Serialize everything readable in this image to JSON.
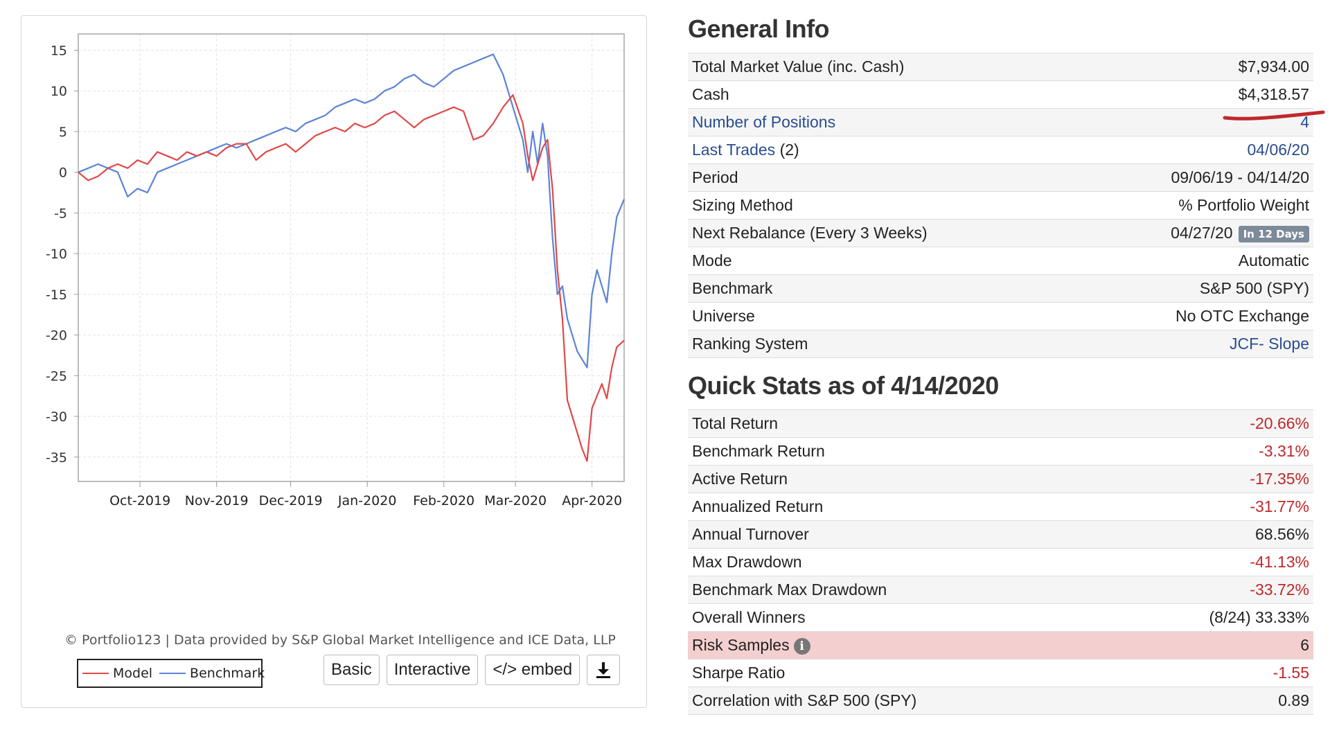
{
  "chart_data": {
    "type": "line",
    "ylim": [
      -38,
      17
    ],
    "yticks": [
      15,
      10,
      5,
      0,
      -5,
      -10,
      -15,
      -20,
      -25,
      -30,
      -35
    ],
    "x_range": [
      "2019-09-06",
      "2020-04-14"
    ],
    "x_ticks": [
      {
        "label": "Oct-2019",
        "date": "2019-10-01"
      },
      {
        "label": "Nov-2019",
        "date": "2019-11-01"
      },
      {
        "label": "Dec-2019",
        "date": "2019-12-01"
      },
      {
        "label": "Jan-2020",
        "date": "2020-01-01"
      },
      {
        "label": "Feb-2020",
        "date": "2020-02-01"
      },
      {
        "label": "Mar-2020",
        "date": "2020-03-01"
      },
      {
        "label": "Apr-2020",
        "date": "2020-04-01"
      }
    ],
    "grid": true,
    "series": [
      {
        "name": "Model",
        "color": "#e04848",
        "points": [
          [
            "2019-09-06",
            0
          ],
          [
            "2019-09-10",
            -1
          ],
          [
            "2019-09-14",
            -0.5
          ],
          [
            "2019-09-18",
            0.5
          ],
          [
            "2019-09-22",
            1
          ],
          [
            "2019-09-26",
            0.5
          ],
          [
            "2019-09-30",
            1.5
          ],
          [
            "2019-10-04",
            1
          ],
          [
            "2019-10-08",
            2.5
          ],
          [
            "2019-10-12",
            2
          ],
          [
            "2019-10-16",
            1.5
          ],
          [
            "2019-10-20",
            2.5
          ],
          [
            "2019-10-24",
            2
          ],
          [
            "2019-10-28",
            2.5
          ],
          [
            "2019-11-01",
            2
          ],
          [
            "2019-11-05",
            3
          ],
          [
            "2019-11-09",
            3.5
          ],
          [
            "2019-11-13",
            3.5
          ],
          [
            "2019-11-17",
            1.5
          ],
          [
            "2019-11-21",
            2.5
          ],
          [
            "2019-11-25",
            3
          ],
          [
            "2019-11-29",
            3.5
          ],
          [
            "2019-12-03",
            2.5
          ],
          [
            "2019-12-07",
            3.5
          ],
          [
            "2019-12-11",
            4.5
          ],
          [
            "2019-12-15",
            5
          ],
          [
            "2019-12-19",
            5.5
          ],
          [
            "2019-12-23",
            5
          ],
          [
            "2019-12-27",
            6
          ],
          [
            "2019-12-31",
            5.5
          ],
          [
            "2020-01-04",
            6
          ],
          [
            "2020-01-08",
            7
          ],
          [
            "2020-01-12",
            7.5
          ],
          [
            "2020-01-16",
            6.5
          ],
          [
            "2020-01-20",
            5.5
          ],
          [
            "2020-01-24",
            6.5
          ],
          [
            "2020-01-28",
            7
          ],
          [
            "2020-02-01",
            7.5
          ],
          [
            "2020-02-05",
            8
          ],
          [
            "2020-02-09",
            7.5
          ],
          [
            "2020-02-13",
            4
          ],
          [
            "2020-02-17",
            4.5
          ],
          [
            "2020-02-21",
            6
          ],
          [
            "2020-02-25",
            8
          ],
          [
            "2020-02-29",
            9.5
          ],
          [
            "2020-03-04",
            6
          ],
          [
            "2020-03-06",
            2
          ],
          [
            "2020-03-08",
            -1
          ],
          [
            "2020-03-10",
            1
          ],
          [
            "2020-03-12",
            3
          ],
          [
            "2020-03-14",
            4
          ],
          [
            "2020-03-15",
            1
          ],
          [
            "2020-03-16",
            -2
          ],
          [
            "2020-03-18",
            -12
          ],
          [
            "2020-03-20",
            -18
          ],
          [
            "2020-03-22",
            -28
          ],
          [
            "2020-03-24",
            -30
          ],
          [
            "2020-03-26",
            -32
          ],
          [
            "2020-03-28",
            -34
          ],
          [
            "2020-03-30",
            -35.5
          ],
          [
            "2020-04-01",
            -29
          ],
          [
            "2020-04-03",
            -27.5
          ],
          [
            "2020-04-05",
            -26
          ],
          [
            "2020-04-07",
            -27.8
          ],
          [
            "2020-04-09",
            -24
          ],
          [
            "2020-04-11",
            -21.5
          ],
          [
            "2020-04-14",
            -20.66
          ]
        ]
      },
      {
        "name": "Benchmark",
        "color": "#5b84d6",
        "points": [
          [
            "2019-09-06",
            0
          ],
          [
            "2019-09-10",
            0.5
          ],
          [
            "2019-09-14",
            1
          ],
          [
            "2019-09-18",
            0.5
          ],
          [
            "2019-09-22",
            0
          ],
          [
            "2019-09-26",
            -3
          ],
          [
            "2019-09-30",
            -2
          ],
          [
            "2019-10-04",
            -2.5
          ],
          [
            "2019-10-08",
            0
          ],
          [
            "2019-10-12",
            0.5
          ],
          [
            "2019-10-16",
            1
          ],
          [
            "2019-10-20",
            1.5
          ],
          [
            "2019-10-24",
            2
          ],
          [
            "2019-10-28",
            2.5
          ],
          [
            "2019-11-01",
            3
          ],
          [
            "2019-11-05",
            3.5
          ],
          [
            "2019-11-09",
            3
          ],
          [
            "2019-11-13",
            3.5
          ],
          [
            "2019-11-17",
            4
          ],
          [
            "2019-11-21",
            4.5
          ],
          [
            "2019-11-25",
            5
          ],
          [
            "2019-11-29",
            5.5
          ],
          [
            "2019-12-03",
            5
          ],
          [
            "2019-12-07",
            6
          ],
          [
            "2019-12-11",
            6.5
          ],
          [
            "2019-12-15",
            7
          ],
          [
            "2019-12-19",
            8
          ],
          [
            "2019-12-23",
            8.5
          ],
          [
            "2019-12-27",
            9
          ],
          [
            "2019-12-31",
            8.5
          ],
          [
            "2020-01-04",
            9
          ],
          [
            "2020-01-08",
            10
          ],
          [
            "2020-01-12",
            10.5
          ],
          [
            "2020-01-16",
            11.5
          ],
          [
            "2020-01-20",
            12
          ],
          [
            "2020-01-24",
            11
          ],
          [
            "2020-01-28",
            10.5
          ],
          [
            "2020-02-01",
            11.5
          ],
          [
            "2020-02-05",
            12.5
          ],
          [
            "2020-02-09",
            13
          ],
          [
            "2020-02-13",
            13.5
          ],
          [
            "2020-02-17",
            14
          ],
          [
            "2020-02-21",
            14.5
          ],
          [
            "2020-02-25",
            12
          ],
          [
            "2020-02-29",
            8
          ],
          [
            "2020-03-04",
            4
          ],
          [
            "2020-03-06",
            0
          ],
          [
            "2020-03-08",
            5
          ],
          [
            "2020-03-10",
            1
          ],
          [
            "2020-03-12",
            6
          ],
          [
            "2020-03-14",
            2
          ],
          [
            "2020-03-15",
            -3
          ],
          [
            "2020-03-16",
            -8
          ],
          [
            "2020-03-18",
            -15
          ],
          [
            "2020-03-20",
            -14
          ],
          [
            "2020-03-22",
            -18
          ],
          [
            "2020-03-24",
            -20
          ],
          [
            "2020-03-26",
            -22
          ],
          [
            "2020-03-28",
            -23
          ],
          [
            "2020-03-30",
            -24
          ],
          [
            "2020-04-01",
            -15
          ],
          [
            "2020-04-03",
            -12
          ],
          [
            "2020-04-05",
            -14
          ],
          [
            "2020-04-07",
            -16
          ],
          [
            "2020-04-09",
            -10
          ],
          [
            "2020-04-11",
            -5.5
          ],
          [
            "2020-04-14",
            -3.31
          ]
        ]
      }
    ]
  },
  "chart_panel": {
    "credits": "© Portfolio123 | Data provided by S&P Global Market Intelligence and ICE Data, LLP",
    "legend": {
      "model": "Model",
      "benchmark": "Benchmark"
    },
    "buttons": {
      "basic": "Basic",
      "interactive": "Interactive",
      "embed": "</> embed",
      "download_icon": "download-icon"
    }
  },
  "general_info": {
    "title": "General Info",
    "rows": [
      {
        "label": "Total Market Value (inc. Cash)",
        "value": "$7,934.00"
      },
      {
        "label": "Cash",
        "value": "$4,318.57"
      },
      {
        "label": "Number of Positions",
        "value": "4"
      },
      {
        "label": "Last Trades",
        "label_suffix": " (2)",
        "value": "04/06/20"
      },
      {
        "label": "Period",
        "value": "09/06/19 - 04/14/20"
      },
      {
        "label": "Sizing Method",
        "value": "% Portfolio Weight"
      },
      {
        "label": "Next Rebalance (Every 3 Weeks)",
        "value": "04/27/20",
        "badge": "In 12 Days"
      },
      {
        "label": "Mode",
        "value": "Automatic"
      },
      {
        "label": "Benchmark",
        "value": "S&P 500 (SPY)"
      },
      {
        "label": "Universe",
        "value": "No OTC Exchange"
      },
      {
        "label": "Ranking System",
        "value": "JCF- Slope"
      }
    ]
  },
  "quick_stats": {
    "title": "Quick Stats as of 4/14/2020",
    "rows": [
      {
        "label": "Total Return",
        "value": "-20.66%"
      },
      {
        "label": "Benchmark Return",
        "value": "-3.31%"
      },
      {
        "label": "Active Return",
        "value": "-17.35%"
      },
      {
        "label": "Annualized Return",
        "value": "-31.77%"
      },
      {
        "label": "Annual Turnover",
        "value": "68.56%"
      },
      {
        "label": "Max Drawdown",
        "value": "-41.13%"
      },
      {
        "label": "Benchmark Max Drawdown",
        "value": "-33.72%"
      },
      {
        "label": "Overall Winners",
        "value": "(8/24) 33.33%"
      },
      {
        "label": "Risk Samples",
        "value": "6",
        "icon": "info-icon"
      },
      {
        "label": "Sharpe Ratio",
        "value": "-1.55"
      },
      {
        "label": "Correlation with S&P 500 (SPY)",
        "value": "0.89"
      }
    ]
  },
  "colors": {
    "negative": "#c0282a",
    "link": "#2a4d8f",
    "highlight_row": "#f4cfcf",
    "annotation": "#c0282a"
  }
}
